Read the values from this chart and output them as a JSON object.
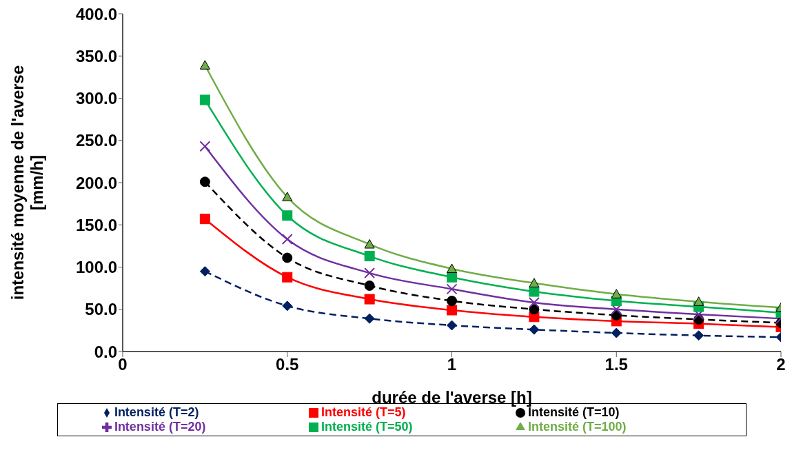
{
  "chart_data": {
    "type": "line",
    "xlabel": "durée de l'averse [h]",
    "ylabel": "intensité moyenne de l'averse\n[mm/h]",
    "x": [
      0.25,
      0.5,
      0.75,
      1,
      1.25,
      1.5,
      1.75,
      2
    ],
    "xlim": [
      0,
      2
    ],
    "xticks": [
      0,
      0.5,
      1,
      1.5,
      2
    ],
    "ylim": [
      0,
      400
    ],
    "yticks": [
      {
        "value": 0,
        "label": "0.0"
      },
      {
        "value": 50,
        "label": "50.0"
      },
      {
        "value": 100,
        "label": "100.0"
      },
      {
        "value": 150,
        "label": "150.0"
      },
      {
        "value": 200,
        "label": "200.0"
      },
      {
        "value": 250,
        "label": "250.0"
      },
      {
        "value": 300,
        "label": "300.0"
      },
      {
        "value": 350,
        "label": "350.0"
      },
      {
        "value": 400,
        "label": "400.0"
      }
    ],
    "grid": false,
    "legend": "bottom",
    "series": [
      {
        "name": "Intensité (T=2)",
        "color": "#002060",
        "marker": "diamond",
        "line_style": "dashed",
        "values": [
          95,
          54,
          39,
          31,
          26,
          22,
          19,
          17
        ]
      },
      {
        "name": "Intensité (T=5)",
        "color": "#ff0000",
        "marker": "square",
        "line_style": "solid",
        "values": [
          157,
          88,
          62,
          49,
          41,
          36,
          33,
          29
        ]
      },
      {
        "name": "Intensité (T=10)",
        "color": "#000000",
        "marker": "circle",
        "line_style": "dashed",
        "values": [
          201,
          111,
          78,
          60,
          50,
          43,
          38,
          34
        ]
      },
      {
        "name": "Intensité (T=20)",
        "color": "#7030a0",
        "marker": "cross",
        "line_style": "solid",
        "values": [
          243,
          133,
          93,
          74,
          58,
          50,
          44,
          39
        ]
      },
      {
        "name": "Intensité (T=50)",
        "color": "#00b050",
        "marker": "square",
        "line_style": "solid",
        "values": [
          298,
          161,
          113,
          88,
          71,
          60,
          53,
          46
        ]
      },
      {
        "name": "Intensité (T=100)",
        "color": "#70ad47",
        "marker": "triangle",
        "line_style": "solid",
        "values": [
          339,
          183,
          127,
          98,
          81,
          68,
          59,
          52
        ]
      }
    ]
  }
}
